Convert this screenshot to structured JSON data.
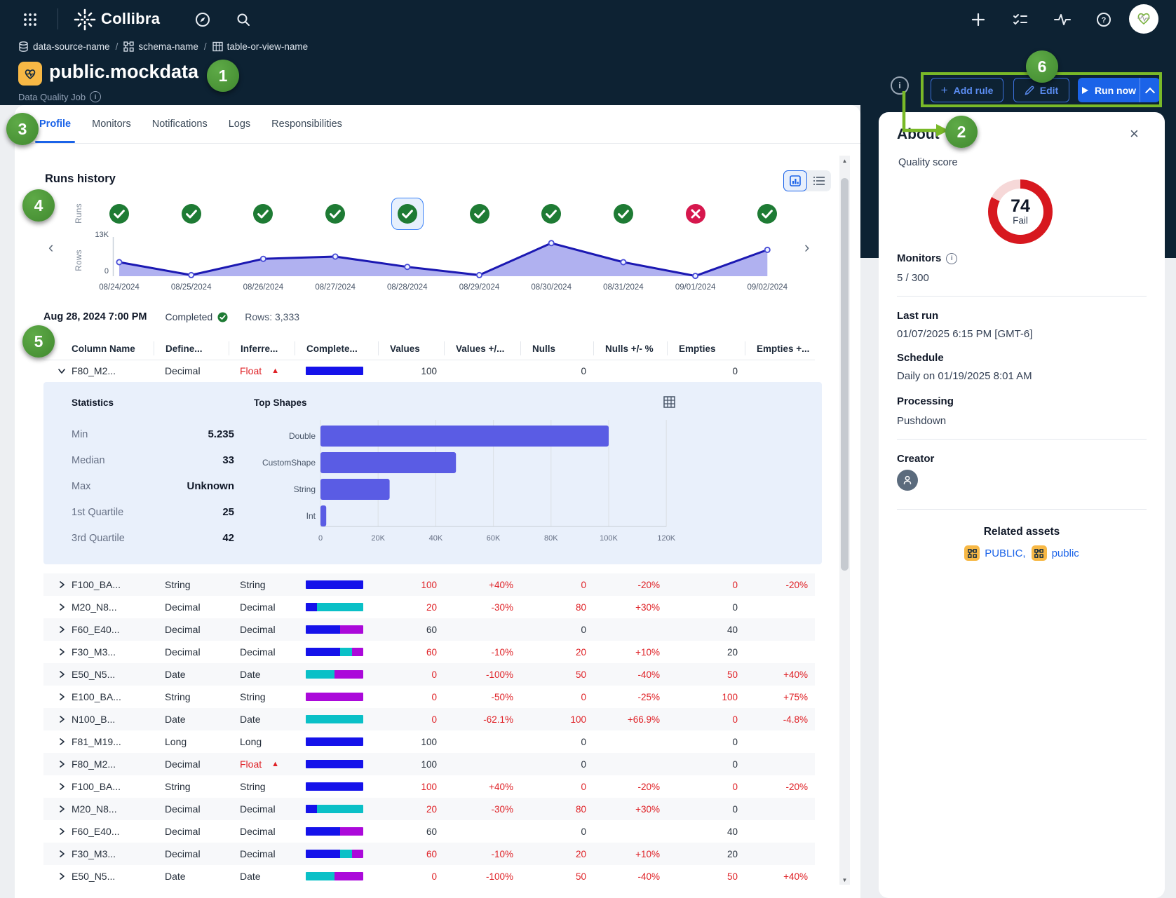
{
  "topbar": {
    "brand": "Collibra"
  },
  "breadcrumb": {
    "separator": "/",
    "items": [
      "data-source-name",
      "schema-name",
      "table-or-view-name"
    ]
  },
  "header": {
    "title": "public.mockdata",
    "subtitle": "Data Quality Job"
  },
  "actions": {
    "add_rule": "Add rule",
    "edit": "Edit",
    "run_now": "Run now"
  },
  "tabs": [
    {
      "label": "Profile",
      "active": true
    },
    {
      "label": "Monitors",
      "active": false
    },
    {
      "label": "Notifications",
      "active": false
    },
    {
      "label": "Logs",
      "active": false
    },
    {
      "label": "Responsibilities",
      "active": false
    }
  ],
  "runs_history": {
    "title": "Runs history",
    "axis_left_top": "Runs",
    "axis_left_bottom": "Rows",
    "y_max_label": "13K",
    "y_min_label": "0",
    "selected_index": 4,
    "runs": [
      {
        "date": "08/24/2024",
        "status": "success",
        "rows": 5000
      },
      {
        "date": "08/25/2024",
        "status": "success",
        "rows": 400
      },
      {
        "date": "08/26/2024",
        "status": "success",
        "rows": 6200
      },
      {
        "date": "08/27/2024",
        "status": "success",
        "rows": 7000
      },
      {
        "date": "08/28/2024",
        "status": "success",
        "rows": 3333
      },
      {
        "date": "08/29/2024",
        "status": "success",
        "rows": 400
      },
      {
        "date": "08/30/2024",
        "status": "success",
        "rows": 11800
      },
      {
        "date": "08/31/2024",
        "status": "success",
        "rows": 5000
      },
      {
        "date": "09/01/2024",
        "status": "fail",
        "rows": 100
      },
      {
        "date": "09/02/2024",
        "status": "success",
        "rows": 9400
      }
    ],
    "selected_run": {
      "datetime": "Aug 28, 2024  7:00 PM",
      "status": "Completed",
      "rows_label": "Rows: 3,333"
    }
  },
  "chart_data": [
    {
      "type": "area",
      "title": "Runs history - Rows",
      "x": [
        "08/24/2024",
        "08/25/2024",
        "08/26/2024",
        "08/27/2024",
        "08/28/2024",
        "08/29/2024",
        "08/30/2024",
        "08/31/2024",
        "09/01/2024",
        "09/02/2024"
      ],
      "series": [
        {
          "name": "Rows",
          "values": [
            5000,
            400,
            6200,
            7000,
            3333,
            400,
            11800,
            5000,
            100,
            9400
          ]
        }
      ],
      "ylim": [
        0,
        13000
      ],
      "yticks": [
        "0",
        "13K"
      ],
      "grid": false,
      "legend": "none"
    },
    {
      "type": "bar",
      "orientation": "horizontal",
      "title": "Top Shapes",
      "categories": [
        "Double",
        "CustomShape",
        "String",
        "Int"
      ],
      "values": [
        100000,
        47000,
        24000,
        2000
      ],
      "xlim": [
        0,
        120000
      ],
      "xticks": [
        "0",
        "20K",
        "40K",
        "60K",
        "80K",
        "100K",
        "120K"
      ],
      "grid": true,
      "legend": "none"
    },
    {
      "type": "pie",
      "title": "Quality score",
      "categories": [
        "score",
        "remainder"
      ],
      "values": [
        74,
        26
      ],
      "center_label": "74",
      "center_sublabel": "Fail"
    }
  ],
  "table": {
    "headers": [
      "Column Name",
      "Define...",
      "Inferre...",
      "Complete...",
      "Values",
      "Values +/...",
      "Nulls",
      "Nulls +/- %",
      "Empties",
      "Empties +..."
    ],
    "expanded_row": {
      "name": "F80_M2...",
      "defined": "Decimal",
      "inferred": "Float",
      "warn": true,
      "bar": [
        100,
        0,
        0
      ],
      "cells": [
        [
          "100",
          false
        ],
        [
          "",
          false
        ],
        [
          "0",
          false
        ],
        [
          "",
          false
        ],
        [
          "0",
          false
        ],
        [
          "",
          false
        ]
      ]
    },
    "statistics": {
      "title": "Statistics",
      "rows": [
        {
          "label": "Min",
          "value": "5.235"
        },
        {
          "label": "Median",
          "value": "33"
        },
        {
          "label": "Max",
          "value": "Unknown"
        },
        {
          "label": "1st Quartile",
          "value": "25"
        },
        {
          "label": "3rd Quartile",
          "value": "42"
        }
      ]
    },
    "top_shapes": {
      "title": "Top Shapes"
    },
    "rows": [
      {
        "name": "F100_BA...",
        "defined": "String",
        "inferred": "String",
        "warn": false,
        "bar": [
          100,
          0,
          0
        ],
        "cells": [
          [
            "100",
            true
          ],
          [
            "+40%",
            true
          ],
          [
            "0",
            true
          ],
          [
            "-20%",
            true
          ],
          [
            "0",
            true
          ],
          [
            "-20%",
            true
          ]
        ]
      },
      {
        "name": "M20_N8...",
        "defined": "Decimal",
        "inferred": "Decimal",
        "warn": false,
        "bar": [
          20,
          80,
          0
        ],
        "cells": [
          [
            "20",
            true
          ],
          [
            "-30%",
            true
          ],
          [
            "80",
            true
          ],
          [
            "+30%",
            true
          ],
          [
            "0",
            false
          ],
          [
            "",
            false
          ]
        ]
      },
      {
        "name": "F60_E40...",
        "defined": "Decimal",
        "inferred": "Decimal",
        "warn": false,
        "bar": [
          60,
          0,
          40
        ],
        "cells": [
          [
            "60",
            false
          ],
          [
            "",
            false
          ],
          [
            "0",
            false
          ],
          [
            "",
            false
          ],
          [
            "40",
            false
          ],
          [
            "",
            false
          ]
        ]
      },
      {
        "name": "F30_M3...",
        "defined": "Decimal",
        "inferred": "Decimal",
        "warn": false,
        "bar": [
          60,
          20,
          20
        ],
        "cells": [
          [
            "60",
            true
          ],
          [
            "-10%",
            true
          ],
          [
            "20",
            true
          ],
          [
            "+10%",
            true
          ],
          [
            "20",
            false
          ],
          [
            "",
            false
          ]
        ]
      },
      {
        "name": "E50_N5...",
        "defined": "Date",
        "inferred": "Date",
        "warn": false,
        "bar": [
          0,
          50,
          50
        ],
        "cells": [
          [
            "0",
            true
          ],
          [
            "-100%",
            true
          ],
          [
            "50",
            true
          ],
          [
            "-40%",
            true
          ],
          [
            "50",
            true
          ],
          [
            "+40%",
            true
          ]
        ]
      },
      {
        "name": "E100_BA...",
        "defined": "String",
        "inferred": "String",
        "warn": false,
        "bar": [
          0,
          0,
          100
        ],
        "cells": [
          [
            "0",
            true
          ],
          [
            "-50%",
            true
          ],
          [
            "0",
            true
          ],
          [
            "-25%",
            true
          ],
          [
            "100",
            true
          ],
          [
            "+75%",
            true
          ]
        ]
      },
      {
        "name": "N100_B...",
        "defined": "Date",
        "inferred": "Date",
        "warn": false,
        "bar": [
          0,
          100,
          0
        ],
        "cells": [
          [
            "0",
            true
          ],
          [
            "-62.1%",
            true
          ],
          [
            "100",
            true
          ],
          [
            "+66.9%",
            true
          ],
          [
            "0",
            true
          ],
          [
            "-4.8%",
            true
          ]
        ]
      },
      {
        "name": "F81_M19...",
        "defined": "Long",
        "inferred": "Long",
        "warn": false,
        "bar": [
          100,
          0,
          0
        ],
        "cells": [
          [
            "100",
            false
          ],
          [
            "",
            false
          ],
          [
            "0",
            false
          ],
          [
            "",
            false
          ],
          [
            "0",
            false
          ],
          [
            "",
            false
          ]
        ]
      },
      {
        "name": "F80_M2...",
        "defined": "Decimal",
        "inferred": "Float",
        "warn": true,
        "bar": [
          100,
          0,
          0
        ],
        "cells": [
          [
            "100",
            false
          ],
          [
            "",
            false
          ],
          [
            "0",
            false
          ],
          [
            "",
            false
          ],
          [
            "0",
            false
          ],
          [
            "",
            false
          ]
        ]
      },
      {
        "name": "F100_BA...",
        "defined": "String",
        "inferred": "String",
        "warn": false,
        "bar": [
          100,
          0,
          0
        ],
        "cells": [
          [
            "100",
            true
          ],
          [
            "+40%",
            true
          ],
          [
            "0",
            true
          ],
          [
            "-20%",
            true
          ],
          [
            "0",
            true
          ],
          [
            "-20%",
            true
          ]
        ]
      },
      {
        "name": "M20_N8...",
        "defined": "Decimal",
        "inferred": "Decimal",
        "warn": false,
        "bar": [
          20,
          80,
          0
        ],
        "cells": [
          [
            "20",
            true
          ],
          [
            "-30%",
            true
          ],
          [
            "80",
            true
          ],
          [
            "+30%",
            true
          ],
          [
            "0",
            false
          ],
          [
            "",
            false
          ]
        ]
      },
      {
        "name": "F60_E40...",
        "defined": "Decimal",
        "inferred": "Decimal",
        "warn": false,
        "bar": [
          60,
          0,
          40
        ],
        "cells": [
          [
            "60",
            false
          ],
          [
            "",
            false
          ],
          [
            "0",
            false
          ],
          [
            "",
            false
          ],
          [
            "40",
            false
          ],
          [
            "",
            false
          ]
        ]
      },
      {
        "name": "F30_M3...",
        "defined": "Decimal",
        "inferred": "Decimal",
        "warn": false,
        "bar": [
          60,
          20,
          20
        ],
        "cells": [
          [
            "60",
            true
          ],
          [
            "-10%",
            true
          ],
          [
            "20",
            true
          ],
          [
            "+10%",
            true
          ],
          [
            "20",
            false
          ],
          [
            "",
            false
          ]
        ]
      },
      {
        "name": "E50_N5...",
        "defined": "Date",
        "inferred": "Date",
        "warn": false,
        "bar": [
          0,
          50,
          50
        ],
        "cells": [
          [
            "0",
            true
          ],
          [
            "-100%",
            true
          ],
          [
            "50",
            true
          ],
          [
            "-40%",
            true
          ],
          [
            "50",
            true
          ],
          [
            "+40%",
            true
          ]
        ]
      }
    ]
  },
  "about": {
    "title": "About",
    "quality_label": "Quality score",
    "score": "74",
    "score_status": "Fail",
    "monitors_label": "Monitors",
    "monitors_value": "5 / 300",
    "last_run_label": "Last run",
    "last_run_value": "01/07/2025 6:15 PM [GMT-6]",
    "schedule_label": "Schedule",
    "schedule_value": "Daily on 01/19/2025 8:01 AM",
    "processing_label": "Processing",
    "processing_value": "Pushdown",
    "creator_label": "Creator",
    "related_label": "Related assets",
    "assets": [
      {
        "label": "PUBLIC,"
      },
      {
        "label": "public"
      }
    ]
  },
  "annotations": {
    "badges": [
      "1",
      "2",
      "3",
      "4",
      "5",
      "6"
    ]
  },
  "colors": {
    "navy": "#0d2233",
    "accent_blue": "#1b63e8",
    "success_green": "#1e7b34",
    "fail_red": "#d6174d",
    "alert_red": "#df2126",
    "bar_values": "#1512ea",
    "bar_nulls": "#0ac0c7",
    "bar_empties": "#ab09da",
    "shape_bar": "#5a5ce4",
    "donut_red": "#d7181f",
    "annotation_green": "#4a9c3c",
    "highlight_green": "#79b928",
    "asset_yellow": "#f7b845"
  }
}
